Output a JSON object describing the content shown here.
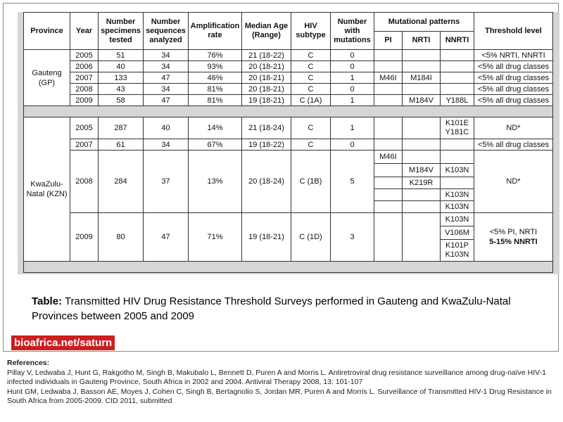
{
  "table": {
    "headers": {
      "province": "Province",
      "year": "Year",
      "specimens": "Number specimens tested",
      "sequences": "Number sequences analyzed",
      "amplification": "Amplification rate",
      "median_age": "Median Age (Range)",
      "subtype": "HIV subtype",
      "mutations": "Number with mutations",
      "mutational_patterns": "Mutational patterns",
      "pi": "PI",
      "nrti": "NRTI",
      "nnrti": "NNRTI",
      "threshold": "Threshold level"
    },
    "gauteng": {
      "province": "Gauteng (GP)",
      "rows": [
        {
          "year": "2005",
          "specimens": "51",
          "sequences": "34",
          "rate": "76%",
          "age": "21 (18-22)",
          "subtype": "C",
          "mutations": "0",
          "pi": "",
          "nrti": "",
          "nnrti": "",
          "threshold": "<5% NRTI, NNRTI"
        },
        {
          "year": "2006",
          "specimens": "40",
          "sequences": "34",
          "rate": "93%",
          "age": "20 (18-21)",
          "subtype": "C",
          "mutations": "0",
          "pi": "",
          "nrti": "",
          "nnrti": "",
          "threshold": "<5% all drug classes"
        },
        {
          "year": "2007",
          "specimens": "133",
          "sequences": "47",
          "rate": "46%",
          "age": "20 (18-21)",
          "subtype": "C",
          "mutations": "1",
          "pi": "M46I",
          "nrti": "M184I",
          "nnrti": "",
          "threshold": "<5% all drug classes"
        },
        {
          "year": "2008",
          "specimens": "43",
          "sequences": "34",
          "rate": "81%",
          "age": "20 (18-21)",
          "subtype": "C",
          "mutations": "0",
          "pi": "",
          "nrti": "",
          "nnrti": "",
          "threshold": "<5% all drug classes"
        },
        {
          "year": "2009",
          "specimens": "58",
          "sequences": "47",
          "rate": "81%",
          "age": "19 (18-21)",
          "subtype": "C (1A)",
          "mutations": "1",
          "pi": "",
          "nrti": "M184V",
          "nnrti": "Y188L",
          "threshold": "<5% all drug classes"
        }
      ]
    },
    "kzn": {
      "province": "KwaZulu-Natal (KZN)",
      "r2005": {
        "year": "2005",
        "specimens": "287",
        "sequences": "40",
        "rate": "14%",
        "age": "21 (18-24)",
        "subtype": "C",
        "mutations": "1",
        "nnrti": "K101E Y181C",
        "threshold": "ND*"
      },
      "r2007": {
        "year": "2007",
        "specimens": "61",
        "sequences": "34",
        "rate": "67%",
        "age": "19 (18-22)",
        "subtype": "C",
        "mutations": "0",
        "threshold": "<5% all drug classes"
      },
      "r2008": {
        "year": "2008",
        "specimens": "284",
        "sequences": "37",
        "rate": "13%",
        "age": "20 (18-24)",
        "subtype": "C (1B)",
        "mutations": "5",
        "threshold": "ND*",
        "patterns": [
          {
            "pi": "M46I",
            "nrti": "",
            "nnrti": ""
          },
          {
            "pi": "",
            "nrti": "M184V",
            "nnrti": "K103N"
          },
          {
            "pi": "",
            "nrti": "K219R",
            "nnrti": ""
          },
          {
            "pi": "",
            "nrti": "",
            "nnrti": "K103N"
          },
          {
            "pi": "",
            "nrti": "",
            "nnrti": "K103N"
          }
        ]
      },
      "r2009": {
        "year": "2009",
        "specimens": "80",
        "sequences": "47",
        "rate": "71%",
        "age": "19 (18-21)",
        "subtype": "C (1D)",
        "mutations": "3",
        "threshold_1": "<5% PI, NRTI",
        "threshold_2": "5-15% NNRTI",
        "patterns": [
          {
            "nnrti": "K103N"
          },
          {
            "nnrti": "V106M"
          },
          {
            "nnrti": "K101P K103N"
          }
        ]
      }
    }
  },
  "caption": {
    "label": "Table:",
    "text": " Transmitted HIV Drug Resistance Threshold Surveys performed in Gauteng and KwaZulu-Natal Provinces between 2005 and 2009"
  },
  "logo": "bioafrica.net/saturn",
  "references": {
    "heading": "References:",
    "ref1": "Pillay V, Ledwaba J, Hunt G, Rakgotho M, Singh B, Makubalo L, Bennett D, Puren A and Morris L. Antiretroviral drug resistance surveillance among drug-naïve HIV-1 infected individuals in Gauteng Province, South Africa in 2002 and 2004. Antiviral Therapy 2008, 13: 101-107",
    "ref2": "Hunt GM, Ledwaba J, Basson AE, Moyes J, Cohen C, Singh B, Bertagnolio S, Jordan MR, Puren A and Morris L. Surveillance of Transmitted HIV-1 Drug Resistance in South Africa from 2005-2009. CID 2011, submitted"
  }
}
